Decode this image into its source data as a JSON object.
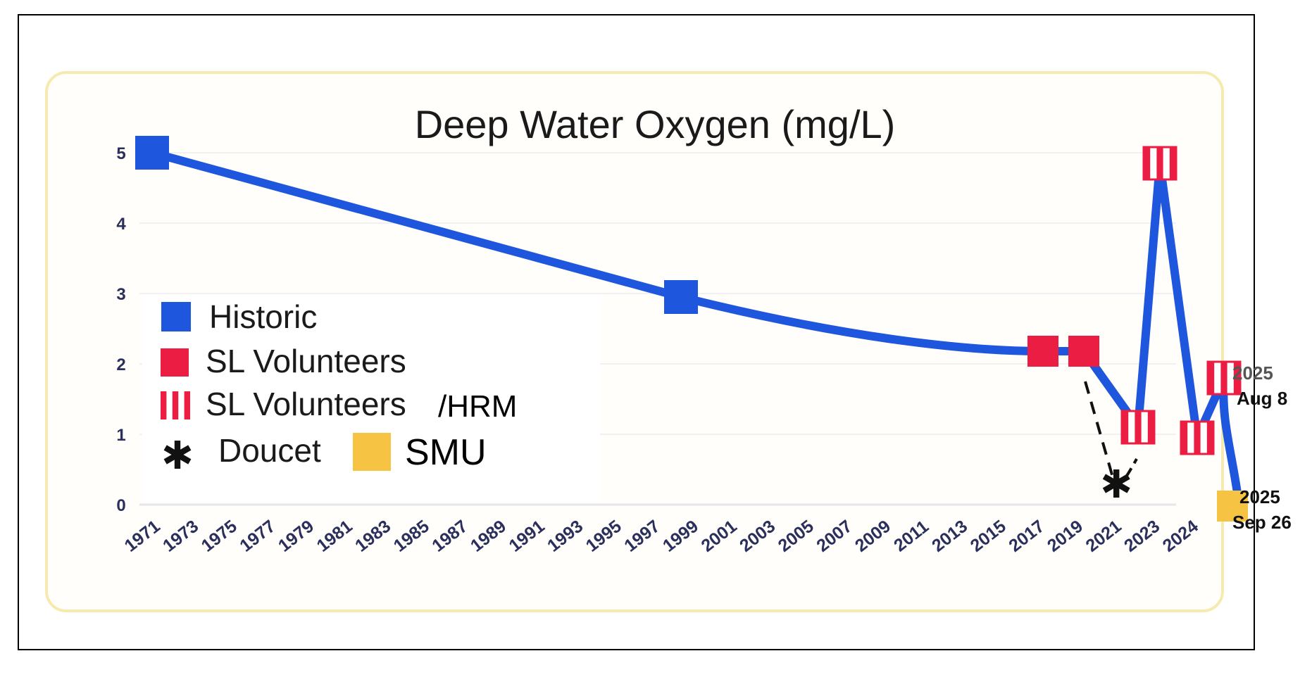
{
  "chart_data": {
    "type": "line",
    "title": "Deep Water Oxygen (mg/L)",
    "xlabel": "",
    "ylabel": "",
    "ylim": [
      0,
      5
    ],
    "y_ticks": [
      "0",
      "1",
      "2",
      "3",
      "4",
      "5"
    ],
    "x_ticks": [
      "1971",
      "1973",
      "1975",
      "1977",
      "1979",
      "1981",
      "1983",
      "1985",
      "1987",
      "1989",
      "1991",
      "1993",
      "1995",
      "1997",
      "1999",
      "2001",
      "2003",
      "2005",
      "2007",
      "2009",
      "2011",
      "2013",
      "2015",
      "2017",
      "2019",
      "2021",
      "2023",
      "2024"
    ],
    "main_line": {
      "color": "#1f56de",
      "points": [
        {
          "x": 1971,
          "y": 5.0,
          "group": "Historic"
        },
        {
          "x": 1998,
          "y": 2.95,
          "group": "Historic"
        },
        {
          "x": 2017,
          "y": 2.18,
          "group": "SL Volunteers"
        },
        {
          "x": 2019,
          "y": 2.18,
          "group": "SL Volunteers"
        },
        {
          "x": 2021,
          "y": 1.1,
          "group": "SL Volunteers/HRM"
        },
        {
          "x": 2022,
          "y": 4.85,
          "group": "SL Volunteers/HRM"
        },
        {
          "x": 2023.9,
          "y": 0.95,
          "group": "SL Volunteers/HRM"
        },
        {
          "x": 2025.5,
          "y": 1.8,
          "group": "SL Volunteers/HRM",
          "annotation": [
            "2025",
            "Aug 8"
          ]
        },
        {
          "x": 2025.9,
          "y": 0.1,
          "group": "SMU",
          "annotation": [
            "2025",
            "Sep 26"
          ]
        }
      ]
    },
    "doucet": {
      "point": {
        "x": 2020.2,
        "y": 0.3
      },
      "from": {
        "x": 2019,
        "y": 1.75
      },
      "to": {
        "x": 2021,
        "y": 0.65
      }
    },
    "legend": {
      "position": "left",
      "items": [
        {
          "label": "Historic",
          "marker": "square",
          "color": "#1f56de"
        },
        {
          "label": "SL Volunteers",
          "marker": "square",
          "color": "#ec1d43"
        },
        {
          "label": "SL Volunteers",
          "suffix": "/HRM",
          "marker": "striped",
          "color": "#ec1d43"
        },
        {
          "label": "Doucet",
          "marker": "asterisk",
          "color": "#000000"
        },
        {
          "label": "SMU",
          "marker": "square",
          "color": "#f6c342"
        }
      ]
    },
    "colors": {
      "historic": "#1f56de",
      "volunteers": "#ec1d43",
      "smu": "#f6c342",
      "tick": "#2a2f5c"
    }
  }
}
